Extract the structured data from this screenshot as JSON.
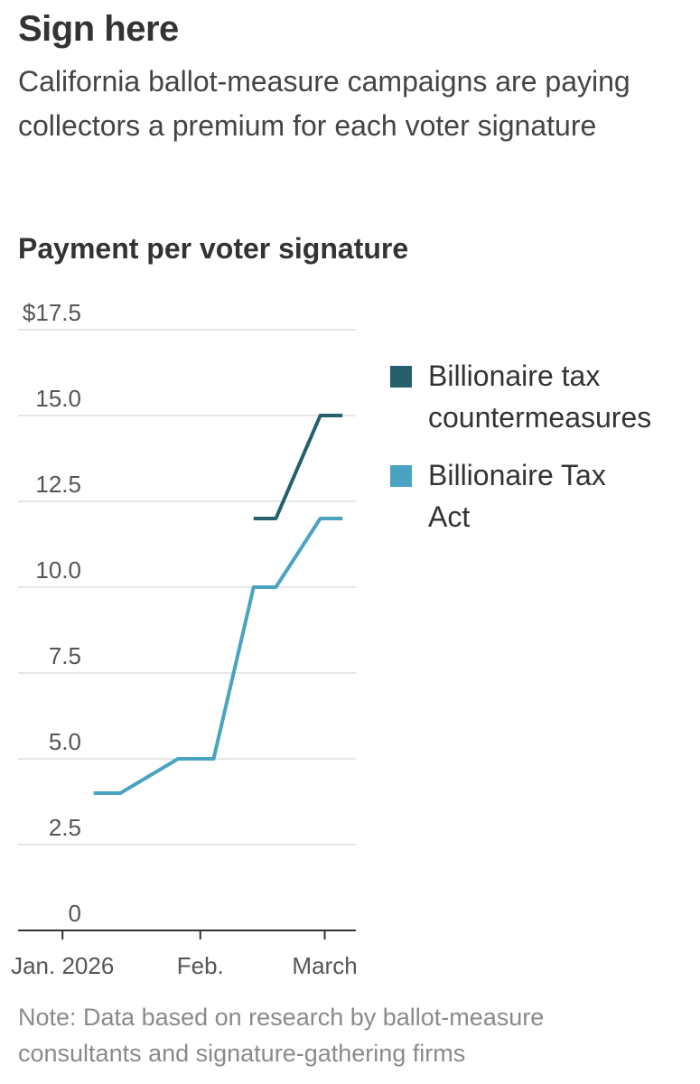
{
  "header": {
    "title": "Sign here",
    "subtitle": "California ballot-measure campaigns are paying collectors a premium for each voter signature"
  },
  "chart_heading": "Payment per voter signature",
  "note": "Note: Data based on research by ballot-measure consultants and signature-gathering firms",
  "colors": {
    "countermeasures": "#26606d",
    "tax_act": "#4aa3c0",
    "gridline": "#dddddd",
    "axis": "#333333"
  },
  "chart_data": {
    "type": "line",
    "title": "Payment per voter signature",
    "ylabel": "",
    "xlabel": "",
    "ylim": [
      0,
      17.5
    ],
    "xlim": [
      "2025-12-22",
      "2026-03-08"
    ],
    "y_ticks": [
      0,
      2.5,
      5.0,
      7.5,
      10.0,
      12.5,
      15.0,
      17.5
    ],
    "y_tick_labels": [
      "0",
      "2.5",
      "5.0",
      "7.5",
      "10.0",
      "12.5",
      "15.0",
      "$17.5"
    ],
    "x_ticks": [
      {
        "date": "2026-01-01",
        "label": "Jan. 2026"
      },
      {
        "date": "2026-02-01",
        "label": "Feb."
      },
      {
        "date": "2026-03-01",
        "label": "March"
      }
    ],
    "legend_position": "right",
    "series": [
      {
        "name": "Billionaire tax countermeasures",
        "label_lines": [
          "Billionaire tax",
          "countermeasures"
        ],
        "color": "#26606d",
        "points": [
          {
            "date": "2026-02-13",
            "value": 12
          },
          {
            "date": "2026-02-18",
            "value": 12
          },
          {
            "date": "2026-02-28",
            "value": 15
          },
          {
            "date": "2026-03-05",
            "value": 15
          }
        ]
      },
      {
        "name": "Billionaire Tax Act",
        "label_lines": [
          "Billionaire Tax",
          "Act"
        ],
        "color": "#4aa3c0",
        "points": [
          {
            "date": "2026-01-08",
            "value": 4
          },
          {
            "date": "2026-01-14",
            "value": 4
          },
          {
            "date": "2026-01-27",
            "value": 5
          },
          {
            "date": "2026-02-04",
            "value": 5
          },
          {
            "date": "2026-02-13",
            "value": 10
          },
          {
            "date": "2026-02-18",
            "value": 10
          },
          {
            "date": "2026-02-28",
            "value": 12
          },
          {
            "date": "2026-03-05",
            "value": 12
          }
        ]
      }
    ]
  }
}
